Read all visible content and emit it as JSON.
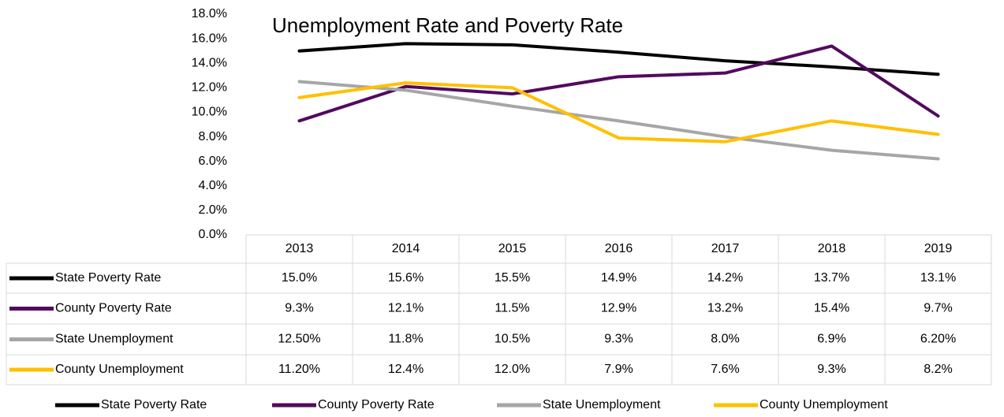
{
  "chart_data": {
    "type": "line",
    "title": "Unemployment Rate and Poverty Rate",
    "categories": [
      "2013",
      "2014",
      "2015",
      "2016",
      "2017",
      "2018",
      "2019"
    ],
    "series": [
      {
        "name": "State Poverty Rate",
        "color": "#000000",
        "values": [
          15.0,
          15.6,
          15.5,
          14.9,
          14.2,
          13.7,
          13.1
        ],
        "value_labels": [
          "15.0%",
          "15.6%",
          "15.5%",
          "14.9%",
          "14.2%",
          "13.7%",
          "13.1%"
        ]
      },
      {
        "name": "County Poverty Rate",
        "color": "#520a5e",
        "values": [
          9.3,
          12.1,
          11.5,
          12.9,
          13.2,
          15.4,
          9.7
        ],
        "value_labels": [
          "9.3%",
          "12.1%",
          "11.5%",
          "12.9%",
          "13.2%",
          "15.4%",
          "9.7%"
        ]
      },
      {
        "name": "State Unemployment",
        "color": "#a6a6a6",
        "values": [
          12.5,
          11.8,
          10.5,
          9.3,
          8.0,
          6.9,
          6.2
        ],
        "value_labels": [
          "12.50%",
          "11.8%",
          "10.5%",
          "9.3%",
          "8.0%",
          "6.9%",
          "6.20%"
        ]
      },
      {
        "name": "County Unemployment",
        "color": "#ffc000",
        "values": [
          11.2,
          12.4,
          12.0,
          7.9,
          7.6,
          9.3,
          8.2
        ],
        "value_labels": [
          "11.20%",
          "12.4%",
          "12.0%",
          "7.9%",
          "7.6%",
          "9.3%",
          "8.2%"
        ]
      }
    ],
    "ylim": [
      0,
      18
    ],
    "yticks": [
      {
        "value": 0,
        "label": "0.0%"
      },
      {
        "value": 2,
        "label": "2.0%"
      },
      {
        "value": 4,
        "label": "4.0%"
      },
      {
        "value": 6,
        "label": "6.0%"
      },
      {
        "value": 8,
        "label": "8.0%"
      },
      {
        "value": 10,
        "label": "10.0%"
      },
      {
        "value": 12,
        "label": "12.0%"
      },
      {
        "value": 14,
        "label": "14.0%"
      },
      {
        "value": 16,
        "label": "16.0%"
      },
      {
        "value": 18,
        "label": "18.0%"
      }
    ],
    "grid": false,
    "legend": "bottom"
  }
}
